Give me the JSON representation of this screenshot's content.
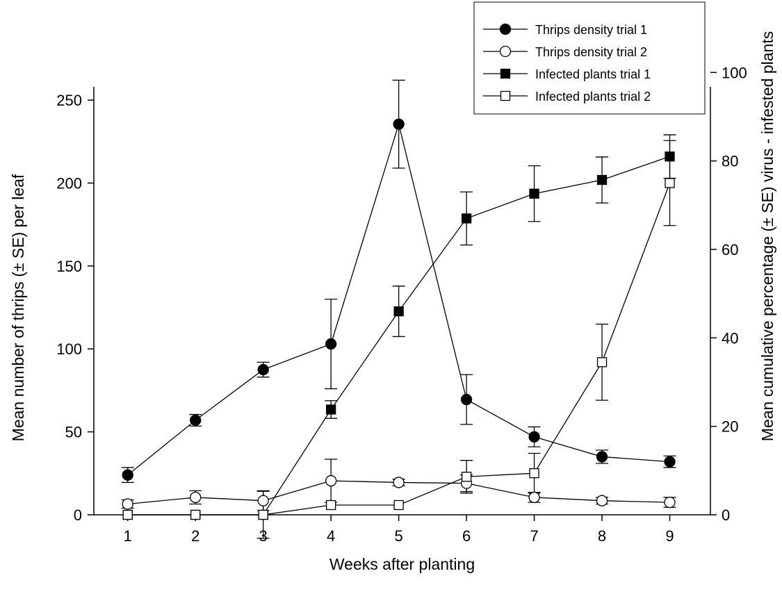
{
  "chart_data": {
    "type": "line",
    "xlabel": "Weeks after planting",
    "ylabel": "Mean number of thrips (± SE) per leaf",
    "y2label": "Mean cumulative percentage (± SE) virus - infested plants",
    "x": [
      1,
      2,
      3,
      4,
      5,
      6,
      7,
      8,
      9
    ],
    "x_ticks": [
      "1",
      "2",
      "3",
      "4",
      "5",
      "6",
      "7",
      "8",
      "9"
    ],
    "xlim": [
      0.5,
      9.6
    ],
    "ylim": [
      0,
      258
    ],
    "y_ticks": [
      "0",
      "50",
      "100",
      "150",
      "200",
      "250"
    ],
    "y2lim": [
      0,
      96.75
    ],
    "y2_ticks": [
      "0",
      "20",
      "40",
      "60",
      "80",
      "100"
    ],
    "legend_position": "top-right",
    "grid": false,
    "series": [
      {
        "name": "Thrips density trial 1",
        "axis": "left",
        "marker": "circle",
        "fill": "#000000",
        "values": [
          24,
          57,
          87.5,
          103,
          235.5,
          69.5,
          47,
          35,
          32
        ],
        "err": [
          4.5,
          3.5,
          4.5,
          27,
          26.5,
          15,
          6,
          4,
          3.5
        ]
      },
      {
        "name": "Thrips density trial 2",
        "axis": "left",
        "marker": "circle",
        "fill": "#ffffff",
        "values": [
          6.5,
          10.5,
          8.5,
          20.5,
          19.5,
          19,
          10.5,
          8.5,
          7.5
        ],
        "err": [
          2.5,
          4,
          6,
          13,
          2,
          5,
          3,
          2,
          3
        ]
      },
      {
        "name": "Infected plants trial 1",
        "axis": "right",
        "marker": "square",
        "fill": "#000000",
        "values": [
          0,
          0,
          0,
          23.8,
          46,
          67,
          72.6,
          75.7,
          81
        ],
        "err": [
          0,
          0,
          0,
          2,
          5.7,
          6,
          6.3,
          5.2,
          4.9
        ]
      },
      {
        "name": "Infected plants trial 2",
        "axis": "right",
        "marker": "square",
        "fill": "#ffffff",
        "values": [
          0,
          0,
          0,
          2.2,
          2.2,
          8.6,
          9.4,
          34.5,
          75
        ],
        "err": [
          0,
          0,
          5.3,
          0,
          0,
          3.7,
          4.5,
          8.6,
          9.6
        ]
      }
    ]
  }
}
